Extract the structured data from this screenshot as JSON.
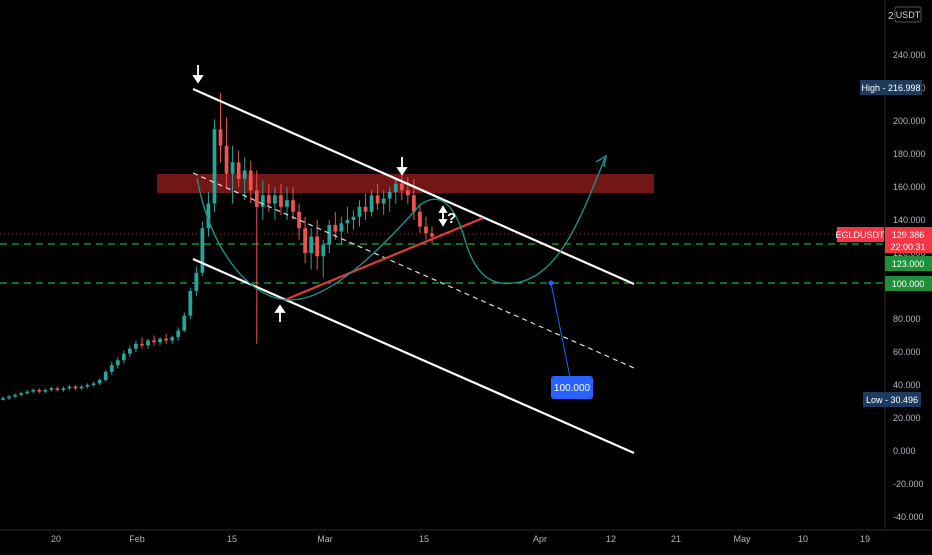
{
  "currency_label": "USDT",
  "corner_label": "2",
  "price_tags": {
    "high": "High - 216.998",
    "last_symbol": "EGLDUSDT",
    "last_price": "129.386",
    "countdown": "22:00:31",
    "level_123": "123.000",
    "level_100": "100.000",
    "low": "Low - 30.496"
  },
  "annotations": {
    "target_label": "100.000",
    "question": "?"
  },
  "colors": {
    "background": "#000000",
    "up_candle": "#26a69a",
    "down_candle": "#ef5350",
    "channel_lines": "#ffffff",
    "support_line": "#e53935",
    "resistance_zone": "#8b1a1a",
    "projection_path": "#1e8f8a",
    "level_lines": "#1faa3a",
    "target_label_bg": "#2962ff",
    "high_low_tag_bg": "#1c3a5e",
    "last_price_tag_bg": "#f23645"
  },
  "chart_data": {
    "type": "candlestick",
    "symbol": "EGLDUSDT",
    "y_axis": {
      "ticks": [
        "-40.000",
        "-20.000",
        "0.000",
        "20.000",
        "40.000",
        "60.000",
        "80.000",
        "100.000",
        "120.000",
        "140.000",
        "160.000",
        "180.000",
        "200.000",
        "220.000",
        "240.000"
      ],
      "ylim": [
        -45,
        262
      ]
    },
    "x_axis": {
      "ticks": [
        "20",
        "Feb",
        "15",
        "Mar",
        "15",
        "Apr",
        "12",
        "21",
        "May",
        "10",
        "19"
      ]
    },
    "high": 216.998,
    "low": 30.496,
    "last_price": 129.386,
    "horizontal_levels": [
      123,
      100
    ],
    "resistance_zone": [
      155,
      166
    ],
    "candles_ohlc": [
      [
        31,
        33,
        30.5,
        32
      ],
      [
        32,
        34,
        31,
        33
      ],
      [
        33,
        35,
        32,
        34
      ],
      [
        34,
        36,
        33,
        35
      ],
      [
        35,
        37,
        34,
        36
      ],
      [
        36,
        38,
        35,
        37
      ],
      [
        37,
        38,
        35,
        36
      ],
      [
        36,
        38,
        35,
        37
      ],
      [
        37,
        39,
        36,
        38
      ],
      [
        38,
        39,
        36,
        37
      ],
      [
        37,
        39,
        36,
        38
      ],
      [
        38,
        40,
        37,
        39
      ],
      [
        39,
        40,
        37,
        38
      ],
      [
        38,
        40,
        37,
        39
      ],
      [
        39,
        41,
        38,
        40
      ],
      [
        40,
        42,
        39,
        41
      ],
      [
        41,
        44,
        40,
        43
      ],
      [
        43,
        49,
        42,
        48
      ],
      [
        48,
        54,
        46,
        52
      ],
      [
        52,
        57,
        50,
        55
      ],
      [
        55,
        61,
        53,
        59
      ],
      [
        59,
        64,
        57,
        62
      ],
      [
        62,
        67,
        60,
        65
      ],
      [
        65,
        69,
        62,
        64
      ],
      [
        64,
        68,
        62,
        67
      ],
      [
        67,
        70,
        64,
        66
      ],
      [
        66,
        69,
        64,
        68
      ],
      [
        68,
        71,
        65,
        67
      ],
      [
        67,
        70,
        65,
        69
      ],
      [
        69,
        75,
        67,
        73
      ],
      [
        73,
        84,
        72,
        82
      ],
      [
        82,
        99,
        80,
        97
      ],
      [
        97,
        112,
        94,
        108
      ],
      [
        108,
        139,
        106,
        135
      ],
      [
        135,
        157,
        130,
        150
      ],
      [
        150,
        201,
        145,
        195
      ],
      [
        195,
        217,
        175,
        185
      ],
      [
        185,
        202,
        160,
        168
      ],
      [
        168,
        185,
        150,
        175
      ],
      [
        175,
        182,
        160,
        165
      ],
      [
        165,
        178,
        152,
        170
      ],
      [
        170,
        176,
        150,
        158
      ],
      [
        158,
        170,
        65,
        148
      ],
      [
        148,
        164,
        140,
        155
      ],
      [
        155,
        162,
        145,
        150
      ],
      [
        150,
        160,
        140,
        155
      ],
      [
        155,
        162,
        143,
        148
      ],
      [
        148,
        160,
        140,
        152
      ],
      [
        152,
        160,
        140,
        145
      ],
      [
        145,
        150,
        128,
        135
      ],
      [
        135,
        142,
        114,
        120
      ],
      [
        120,
        135,
        110,
        130
      ],
      [
        130,
        140,
        110,
        118
      ],
      [
        118,
        128,
        105,
        125
      ],
      [
        125,
        140,
        120,
        137
      ],
      [
        137,
        145,
        128,
        133
      ],
      [
        133,
        142,
        125,
        138
      ],
      [
        138,
        148,
        132,
        140
      ],
      [
        140,
        146,
        134,
        142
      ],
      [
        142,
        152,
        136,
        148
      ],
      [
        148,
        156,
        140,
        145
      ],
      [
        145,
        158,
        142,
        155
      ],
      [
        155,
        162,
        146,
        150
      ],
      [
        150,
        158,
        143,
        153
      ],
      [
        153,
        160,
        145,
        157
      ],
      [
        157,
        165,
        150,
        162
      ],
      [
        162,
        168,
        152,
        158
      ],
      [
        158,
        166,
        150,
        155
      ],
      [
        155,
        165,
        140,
        145
      ],
      [
        145,
        150,
        132,
        136
      ],
      [
        136,
        142,
        128,
        132
      ],
      [
        132,
        136,
        126,
        130
      ]
    ],
    "drawings": {
      "upper_channel": [
        [
          0,
          216.998
        ],
        [
          100,
          102
        ]
      ],
      "mid_channel_dashed": [
        [
          0,
          162
        ],
        [
          100,
          50
        ]
      ],
      "lower_channel": [
        [
          0,
          120
        ],
        [
          100,
          0
        ]
      ],
      "support_trendline": [
        [
          0,
          90
        ],
        [
          1,
          139
        ]
      ],
      "projection_target": 100
    }
  }
}
